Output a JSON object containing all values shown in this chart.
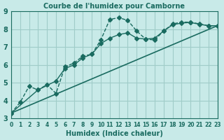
{
  "title": "Courbe de l'humidex pour Camborne",
  "xlabel": "Humidex (Indice chaleur)",
  "bg_color": "#c8eae8",
  "grid_color": "#a0ccc8",
  "line_color": "#1a6b60",
  "xlim": [
    0,
    23
  ],
  "ylim": [
    3,
    9
  ],
  "yticks": [
    3,
    4,
    5,
    6,
    7,
    8,
    9
  ],
  "xticks": [
    0,
    1,
    2,
    3,
    4,
    5,
    6,
    7,
    8,
    9,
    10,
    11,
    12,
    13,
    14,
    15,
    16,
    17,
    18,
    19,
    20,
    21,
    22,
    23
  ],
  "line1_x": [
    0,
    1,
    2,
    3,
    4,
    5,
    6,
    7,
    8,
    9,
    10,
    11,
    12,
    13,
    14,
    15,
    16,
    17,
    18,
    19,
    20,
    21,
    22,
    23
  ],
  "line1_y": [
    3.3,
    3.9,
    4.8,
    4.6,
    4.9,
    4.4,
    5.9,
    6.1,
    6.5,
    6.6,
    7.4,
    8.55,
    8.65,
    8.5,
    7.9,
    7.45,
    7.4,
    7.9,
    8.3,
    8.4,
    8.4,
    8.3,
    8.2,
    8.2
  ],
  "line2_x": [
    0,
    3,
    5,
    6,
    7,
    8,
    9,
    10,
    11,
    12,
    13,
    14,
    15,
    16,
    17,
    18,
    19,
    20,
    21,
    22,
    23
  ],
  "line2_y": [
    3.3,
    4.6,
    5.1,
    5.8,
    6.0,
    6.4,
    6.6,
    7.2,
    7.5,
    7.7,
    7.8,
    7.5,
    7.45,
    7.5,
    7.9,
    8.25,
    8.35,
    8.38,
    8.28,
    8.2,
    8.2
  ],
  "line3_x": [
    0,
    23
  ],
  "line3_y": [
    3.3,
    8.2
  ],
  "marker": "D",
  "marker_size": 3
}
